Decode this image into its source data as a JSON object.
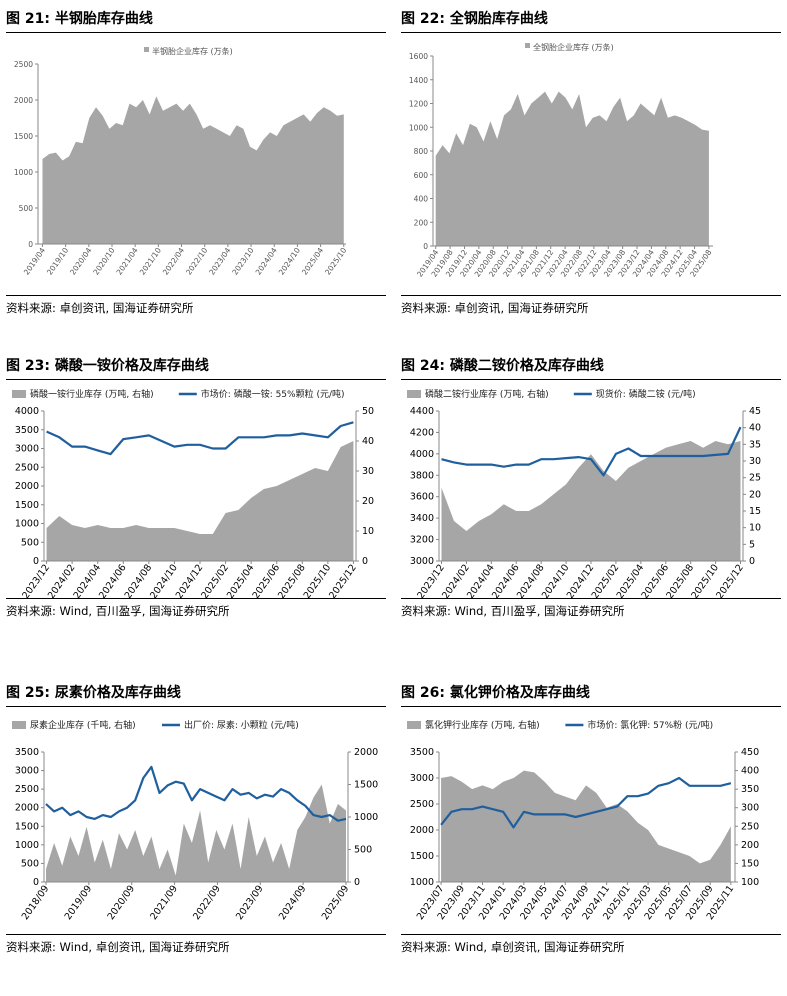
{
  "panels": [
    {
      "title": "图 21:  半钢胎库存曲线",
      "source": "资料来源:  卓创资讯, 国海证券研究所",
      "chart_data": {
        "type": "area",
        "legend": [
          {
            "label": "半钢胎企业库存 (万条)",
            "kind": "area",
            "color": "#a6a6a6"
          }
        ],
        "legend_position": "top-center",
        "x_ticks": [
          "2019/04",
          "2019/10",
          "2020/04",
          "2020/10",
          "2021/04",
          "2021/10",
          "2022/04",
          "2022/10",
          "2023/04",
          "2023/10",
          "2024/04",
          "2024/10",
          "2025/04",
          "2025/10"
        ],
        "area": {
          "name": "半钢胎企业库存 (万条)",
          "x": [
            0,
            0.3,
            0.6,
            0.9,
            1.2,
            1.5,
            1.8,
            2.1,
            2.4,
            2.7,
            3.0,
            3.3,
            3.6,
            3.9,
            4.2,
            4.5,
            4.8,
            5.1,
            5.4,
            5.7,
            6.0,
            6.3,
            6.6,
            6.9,
            7.2,
            7.5,
            7.8,
            8.1,
            8.4,
            8.7,
            9.0,
            9.3,
            9.6,
            9.9,
            10.2,
            10.5,
            10.8,
            11.1,
            11.4,
            11.7,
            12.0,
            12.3,
            12.6,
            12.9,
            13.2,
            13.5
          ],
          "y": [
            1180,
            1250,
            1270,
            1160,
            1220,
            1420,
            1400,
            1750,
            1900,
            1780,
            1600,
            1680,
            1650,
            1950,
            1900,
            2000,
            1800,
            2050,
            1850,
            1900,
            1950,
            1850,
            1950,
            1800,
            1600,
            1650,
            1600,
            1550,
            1500,
            1650,
            1600,
            1350,
            1300,
            1450,
            1550,
            1500,
            1650,
            1700,
            1750,
            1800,
            1700,
            1820,
            1900,
            1850,
            1780,
            1800
          ]
        },
        "y_left": {
          "min": 0,
          "max": 2500,
          "ticks": [
            0,
            500,
            1000,
            1500,
            2000,
            2500
          ]
        },
        "x_range": [
          -0.2,
          13.6
        ],
        "grid": false
      }
    },
    {
      "title": "图 22:  全钢胎库存曲线",
      "source": "资料来源:  卓创资讯, 国海证券研究所",
      "chart_data": {
        "type": "area",
        "legend": [
          {
            "label": "全钢胎企业库存 (万条)",
            "kind": "area",
            "color": "#a6a6a6"
          }
        ],
        "legend_position": "top-center",
        "x_ticks": [
          "2019/04",
          "2019/08",
          "2019/12",
          "2020/04",
          "2020/08",
          "2020/12",
          "2021/04",
          "2021/08",
          "2021/12",
          "2022/04",
          "2022/08",
          "2022/12",
          "2023/04",
          "2023/08",
          "2023/12",
          "2024/04",
          "2024/08",
          "2024/12",
          "2025/04",
          "2025/08"
        ],
        "area": {
          "name": "全钢胎企业库存 (万条)",
          "x": [
            0,
            0.5,
            1,
            1.5,
            2,
            2.5,
            3,
            3.5,
            4,
            4.5,
            5,
            5.5,
            6,
            6.5,
            7,
            7.5,
            8,
            8.5,
            9,
            9.5,
            10,
            10.5,
            11,
            11.5,
            12,
            12.5,
            13,
            13.5,
            14,
            14.5,
            15,
            15.5,
            16,
            16.5,
            17,
            17.5,
            18,
            18.5,
            19,
            19.5,
            20
          ],
          "y": [
            760,
            850,
            780,
            950,
            850,
            1030,
            1000,
            880,
            1050,
            900,
            1100,
            1150,
            1280,
            1100,
            1200,
            1250,
            1300,
            1200,
            1300,
            1250,
            1150,
            1280,
            1000,
            1080,
            1100,
            1050,
            1170,
            1250,
            1050,
            1100,
            1200,
            1150,
            1100,
            1250,
            1080,
            1100,
            1080,
            1050,
            1020,
            980,
            970
          ]
        },
        "y_left": {
          "min": 0,
          "max": 1600,
          "ticks": [
            0,
            200,
            400,
            600,
            800,
            1000,
            1200,
            1400,
            1600
          ]
        },
        "x_range": [
          -0.2,
          20.3
        ],
        "grid": false
      }
    },
    {
      "title": "图 23:  磷酸一铵价格及库存曲线",
      "source": "资料来源:  Wind, 百川盈孚, 国海证券研究所",
      "chart_data": {
        "type": "area+line",
        "legend": [
          {
            "label": "磷酸一铵行业库存 (万吨, 右轴)",
            "kind": "area",
            "color": "#a6a6a6"
          },
          {
            "label": "市场价: 磷酸一铵: 55%颗粒 (元/吨)",
            "kind": "line",
            "color": "#1f5f9e"
          }
        ],
        "legend_position": "top",
        "x_ticks": [
          "2023/12",
          "2024/02",
          "2024/04",
          "2024/06",
          "2024/08",
          "2024/10",
          "2024/12",
          "2025/02",
          "2025/04",
          "2025/06",
          "2025/08",
          "2025/10",
          "2025/12"
        ],
        "area": {
          "name": "磷酸一铵行业库存 (万吨, 右轴)",
          "axis": "right",
          "x": [
            0,
            0.5,
            1,
            1.5,
            2,
            2.5,
            3,
            3.5,
            4,
            4.5,
            5,
            5.5,
            6,
            6.5,
            7,
            7.5,
            8,
            8.5,
            9,
            9.5,
            10,
            10.5,
            11,
            11.5,
            12
          ],
          "y": [
            11,
            15,
            12,
            11,
            12,
            11,
            11,
            12,
            11,
            11,
            11,
            10,
            9,
            9,
            16,
            17,
            21,
            24,
            25,
            27,
            29,
            31,
            30,
            38,
            40
          ]
        },
        "line": {
          "name": "市场价: 磷酸一铵: 55%颗粒 (元/吨)",
          "axis": "left",
          "x": [
            0,
            0.5,
            1,
            1.5,
            2,
            2.5,
            3,
            3.5,
            4,
            4.5,
            5,
            5.5,
            6,
            6.5,
            7,
            7.5,
            8,
            8.5,
            9,
            9.5,
            10,
            10.5,
            11,
            11.5,
            12
          ],
          "y": [
            3450,
            3300,
            3050,
            3050,
            2950,
            2850,
            3250,
            3300,
            3350,
            3200,
            3050,
            3100,
            3100,
            3000,
            3000,
            3300,
            3300,
            3300,
            3350,
            3350,
            3400,
            3350,
            3300,
            3600,
            3700
          ]
        },
        "y_left": {
          "min": 0,
          "max": 4000,
          "ticks": [
            0,
            500,
            1000,
            1500,
            2000,
            2500,
            3000,
            3500,
            4000
          ]
        },
        "y_right": {
          "min": 0,
          "max": 50,
          "ticks": [
            0,
            10,
            20,
            30,
            40,
            50
          ]
        },
        "x_range": [
          -0.1,
          12.1
        ],
        "grid": false
      }
    },
    {
      "title": "图 24:  磷酸二铵价格及库存曲线",
      "source": "资料来源:  Wind, 百川盈孚, 国海证券研究所",
      "chart_data": {
        "type": "area+line",
        "legend": [
          {
            "label": "磷酸二铵行业库存 (万吨, 右轴)",
            "kind": "area",
            "color": "#a6a6a6"
          },
          {
            "label": "现货价: 磷酸二铵 (元/吨)",
            "kind": "line",
            "color": "#1f5f9e"
          }
        ],
        "legend_position": "top",
        "x_ticks": [
          "2023/12",
          "2024/02",
          "2024/04",
          "2024/06",
          "2024/08",
          "2024/10",
          "2024/12",
          "2025/02",
          "2025/04",
          "2025/06",
          "2025/08",
          "2025/10",
          "2025/12"
        ],
        "area": {
          "name": "磷酸二铵行业库存 (万吨, 右轴)",
          "axis": "right",
          "x": [
            0,
            0.5,
            1,
            1.5,
            2,
            2.5,
            3,
            3.5,
            4,
            4.5,
            5,
            5.5,
            6,
            6.5,
            7,
            7.5,
            8,
            8.5,
            9,
            9.5,
            10,
            10.5,
            11,
            11.5,
            12
          ],
          "y": [
            22,
            12,
            9,
            12,
            14,
            17,
            15,
            15,
            17,
            20,
            23,
            28,
            32,
            27,
            24,
            28,
            30,
            32,
            34,
            35,
            36,
            34,
            36,
            35,
            36
          ]
        },
        "line": {
          "name": "现货价: 磷酸二铵 (元/吨)",
          "axis": "left",
          "x": [
            0,
            0.5,
            1,
            1.5,
            2,
            2.5,
            3,
            3.5,
            4,
            4.5,
            5,
            5.5,
            6,
            6.5,
            7,
            7.5,
            8,
            8.5,
            9,
            9.5,
            10,
            10.5,
            11,
            11.5,
            12
          ],
          "y": [
            3950,
            3920,
            3900,
            3900,
            3900,
            3880,
            3900,
            3900,
            3950,
            3950,
            3960,
            3970,
            3950,
            3800,
            4000,
            4050,
            3980,
            3980,
            3980,
            3980,
            3980,
            3980,
            3990,
            4000,
            4250
          ]
        },
        "y_left": {
          "min": 3000,
          "max": 4400,
          "ticks": [
            3000,
            3200,
            3400,
            3600,
            3800,
            4000,
            4200,
            4400
          ]
        },
        "y_right": {
          "min": 0,
          "max": 45,
          "ticks": [
            0,
            5,
            10,
            15,
            20,
            25,
            30,
            35,
            40,
            45
          ]
        },
        "x_range": [
          -0.1,
          12.1
        ],
        "grid": false
      }
    },
    {
      "title": "图 25:  尿素价格及库存曲线",
      "source": "资料来源:  Wind, 卓创资讯, 国海证券研究所",
      "chart_data": {
        "type": "area+line",
        "legend": [
          {
            "label": "尿素企业库存 (千吨, 右轴)",
            "kind": "area",
            "color": "#a6a6a6"
          },
          {
            "label": "出厂价: 尿素: 小颗粒 (元/吨)",
            "kind": "line",
            "color": "#1f5f9e"
          }
        ],
        "legend_position": "top",
        "x_ticks": [
          "2018/09",
          "2019/09",
          "2020/09",
          "2021/09",
          "2022/09",
          "2023/09",
          "2024/09",
          "2025/09"
        ],
        "area": {
          "name": "尿素企业库存 (千吨, 右轴)",
          "axis": "right",
          "x": [
            0,
            0.2,
            0.4,
            0.6,
            0.8,
            1.0,
            1.2,
            1.4,
            1.6,
            1.8,
            2.0,
            2.2,
            2.4,
            2.6,
            2.8,
            3.0,
            3.2,
            3.4,
            3.6,
            3.8,
            4.0,
            4.2,
            4.4,
            4.6,
            4.8,
            5.0,
            5.2,
            5.4,
            5.6,
            5.8,
            6.0,
            6.2,
            6.4,
            6.6,
            6.8,
            7.0,
            7.2,
            7.4
          ],
          "y": [
            200,
            600,
            250,
            700,
            400,
            850,
            300,
            650,
            200,
            750,
            500,
            800,
            400,
            700,
            200,
            500,
            100,
            900,
            600,
            1100,
            300,
            800,
            500,
            900,
            200,
            1000,
            400,
            700,
            300,
            600,
            200,
            800,
            1000,
            1300,
            1500,
            900,
            1200,
            1100
          ]
        },
        "line": {
          "name": "出厂价: 尿素: 小颗粒 (元/吨)",
          "axis": "left",
          "x": [
            0,
            0.2,
            0.4,
            0.6,
            0.8,
            1.0,
            1.2,
            1.4,
            1.6,
            1.8,
            2.0,
            2.2,
            2.4,
            2.6,
            2.8,
            3.0,
            3.2,
            3.4,
            3.6,
            3.8,
            4.0,
            4.2,
            4.4,
            4.6,
            4.8,
            5.0,
            5.2,
            5.4,
            5.6,
            5.8,
            6.0,
            6.2,
            6.4,
            6.6,
            6.8,
            7.0,
            7.2,
            7.4
          ],
          "y": [
            2100,
            1900,
            2000,
            1800,
            1900,
            1750,
            1700,
            1800,
            1750,
            1900,
            2000,
            2200,
            2800,
            3100,
            2400,
            2600,
            2700,
            2650,
            2200,
            2500,
            2400,
            2300,
            2200,
            2500,
            2350,
            2400,
            2250,
            2350,
            2300,
            2500,
            2400,
            2200,
            2050,
            1800,
            1750,
            1800,
            1650,
            1700
          ]
        },
        "y_left": {
          "min": 0,
          "max": 3500,
          "ticks": [
            0,
            500,
            1000,
            1500,
            2000,
            2500,
            3000,
            3500
          ]
        },
        "y_right": {
          "min": 0,
          "max": 2000,
          "ticks": [
            0,
            500,
            1000,
            1500,
            2000
          ]
        },
        "x_range": [
          -0.05,
          7.45
        ],
        "grid": false
      }
    },
    {
      "title": "图 26:  氯化钾价格及库存曲线",
      "source": "资料来源:  Wind, 卓创资讯, 国海证券研究所",
      "chart_data": {
        "type": "area+line",
        "legend": [
          {
            "label": "氯化钾行业库存 (万吨, 右轴)",
            "kind": "area",
            "color": "#a6a6a6"
          },
          {
            "label": "市场价: 氯化钾: 57%粉 (元/吨)",
            "kind": "line",
            "color": "#1f5f9e"
          }
        ],
        "legend_position": "top",
        "x_ticks": [
          "2023/07",
          "2023/09",
          "2023/11",
          "2024/01",
          "2024/03",
          "2024/05",
          "2024/07",
          "2024/09",
          "2024/11",
          "2025/01",
          "2025/03",
          "2025/05",
          "2025/07",
          "2025/09",
          "2025/11"
        ],
        "area": {
          "name": "氯化钾行业库存 (万吨, 右轴)",
          "axis": "right",
          "x": [
            0,
            0.5,
            1,
            1.5,
            2,
            2.5,
            3,
            3.5,
            4,
            4.5,
            5,
            5.5,
            6,
            6.5,
            7,
            7.5,
            8,
            8.5,
            9,
            9.5,
            10,
            10.5,
            11,
            11.5,
            12,
            12.5,
            13,
            13.5,
            14
          ],
          "y": [
            380,
            385,
            370,
            350,
            360,
            350,
            370,
            380,
            400,
            395,
            370,
            340,
            330,
            320,
            360,
            340,
            300,
            310,
            290,
            260,
            240,
            200,
            190,
            180,
            170,
            150,
            160,
            200,
            250
          ]
        },
        "line": {
          "name": "市场价: 氯化钾: 57%粉 (元/吨)",
          "axis": "left",
          "x": [
            0,
            0.5,
            1,
            1.5,
            2,
            2.5,
            3,
            3.5,
            4,
            4.5,
            5,
            5.5,
            6,
            6.5,
            7,
            7.5,
            8,
            8.5,
            9,
            9.5,
            10,
            10.5,
            11,
            11.5,
            12,
            12.5,
            13,
            13.5,
            14
          ],
          "y": [
            2100,
            2350,
            2400,
            2400,
            2450,
            2400,
            2350,
            2050,
            2350,
            2300,
            2300,
            2300,
            2300,
            2250,
            2300,
            2350,
            2400,
            2450,
            2650,
            2650,
            2700,
            2850,
            2900,
            3000,
            2850,
            2850,
            2850,
            2850,
            2900
          ]
        },
        "y_left": {
          "min": 1000,
          "max": 3500,
          "ticks": [
            1000,
            1500,
            2000,
            2500,
            3000,
            3500
          ]
        },
        "y_right": {
          "min": 100,
          "max": 450,
          "ticks": [
            100,
            150,
            200,
            250,
            300,
            350,
            400,
            450
          ]
        },
        "x_range": [
          -0.1,
          14.2
        ],
        "grid": false
      }
    }
  ]
}
